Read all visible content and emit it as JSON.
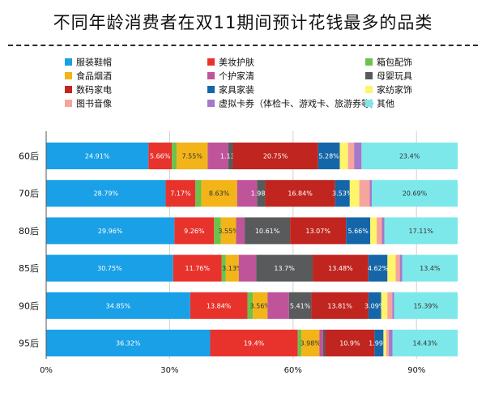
{
  "title": "不同年龄消费者在双11期间预计花钱最多的品类",
  "chart_data": {
    "type": "bar",
    "orientation": "horizontal",
    "stacked": true,
    "title": "不同年龄消费者在双11期间预计花钱最多的品类",
    "xlim": [
      0,
      100
    ],
    "x_ticks": [
      "0%",
      "30%",
      "60%",
      "90%"
    ],
    "legend_position": "top",
    "categories": [
      "60后",
      "70后",
      "80后",
      "85后",
      "90后",
      "95后"
    ],
    "series": [
      {
        "name": "服装鞋帽",
        "color": "#1aa0e6",
        "values": [
          24.91,
          28.79,
          29.96,
          30.75,
          34.85,
          36.32
        ],
        "labels": [
          "24.91%",
          "28.79%",
          "29.96%",
          "30.75%",
          "34.85%",
          "36.32%"
        ]
      },
      {
        "name": "美妆护肤",
        "color": "#e8332d",
        "values": [
          5.66,
          7.17,
          9.26,
          11.76,
          13.84,
          19.4
        ],
        "labels": [
          "5.66%",
          "7.17%",
          "9.26%",
          "11.76%",
          "13.84%",
          "19.4%"
        ]
      },
      {
        "name": "箱包配饰",
        "color": "#6cc24a",
        "values": [
          1.2,
          1.4,
          1.6,
          1.0,
          1.3,
          0.8
        ],
        "labels": [
          "",
          "",
          "",
          "",
          "",
          ""
        ]
      },
      {
        "name": "食品烟酒",
        "color": "#f2b418",
        "values": [
          7.55,
          8.63,
          3.55,
          3.13,
          3.56,
          3.98
        ],
        "labels": [
          "7.55%",
          "8.63%",
          "3.55%",
          "3.13%",
          "3.56%",
          "3.98%"
        ]
      },
      {
        "name": "个护家清",
        "color": "#c0549a",
        "values": [
          5.0,
          4.8,
          2.0,
          4.2,
          5.2,
          0.8
        ],
        "labels": [
          "",
          "",
          "",
          "",
          "",
          ""
        ]
      },
      {
        "name": "母婴玩具",
        "color": "#595a5c",
        "values": [
          1.13,
          1.98,
          10.61,
          13.7,
          5.41,
          0.5
        ],
        "labels": [
          "1.13%",
          "1.98%",
          "10.61%",
          "13.7%",
          "5.41%",
          ""
        ]
      },
      {
        "name": "数码家电",
        "color": "#c1251f",
        "values": [
          20.75,
          16.84,
          13.07,
          13.48,
          13.81,
          10.9
        ],
        "labels": [
          "20.75%",
          "16.84%",
          "13.07%",
          "13.48%",
          "13.81%",
          "10.9%"
        ]
      },
      {
        "name": "家具家装",
        "color": "#1566a8",
        "values": [
          5.28,
          3.53,
          5.66,
          4.62,
          3.09,
          1.99
        ],
        "labels": [
          "5.28%",
          "3.53%",
          "5.66%",
          "4.62%",
          "3.09%",
          "1.99%"
        ]
      },
      {
        "name": "家纺家饰",
        "color": "#fff46a",
        "values": [
          2.0,
          2.3,
          1.5,
          2.0,
          1.5,
          0.6
        ],
        "labels": [
          "",
          "",
          "",
          "",
          "",
          ""
        ]
      },
      {
        "name": "图书音像",
        "color": "#f6a59d",
        "values": [
          1.5,
          2.5,
          1.2,
          1.0,
          1.2,
          0.6
        ],
        "labels": [
          "",
          "",
          "",
          "",
          "",
          ""
        ]
      },
      {
        "name": "虚拟卡券（体检卡、游戏卡、旅游券等）",
        "color": "#a678c8",
        "values": [
          1.8,
          0.5,
          0.6,
          0.6,
          0.4,
          0.8
        ],
        "labels": [
          "",
          "",
          "",
          "",
          "",
          ""
        ]
      },
      {
        "name": "其他",
        "color": "#7de8ea",
        "values": [
          23.4,
          20.69,
          17.11,
          13.4,
          15.39,
          14.43
        ],
        "labels": [
          "23.4%",
          "20.69%",
          "17.11%",
          "13.4%",
          "15.39%",
          "14.43%"
        ]
      }
    ]
  }
}
